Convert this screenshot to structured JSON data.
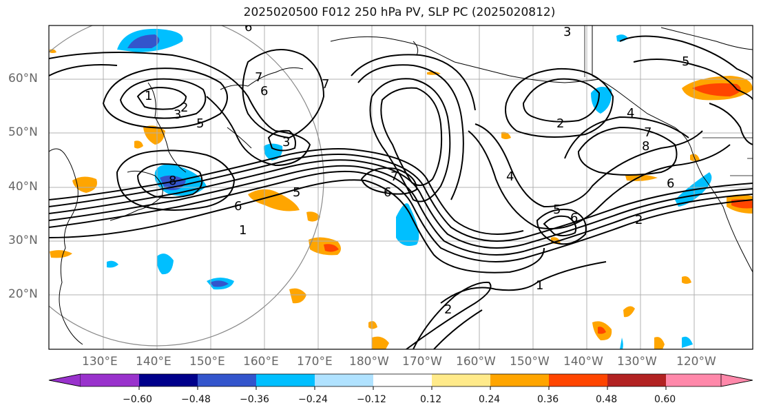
{
  "title": "2025020500 F012 250 hPa PV, SLP PC (2025020812)",
  "lat_labels": [
    "60°N",
    "50°N",
    "40°N",
    "30°N",
    "20°N"
  ],
  "lon_labels": [
    "130°E",
    "140°E",
    "150°E",
    "160°E",
    "170°E",
    "180°W",
    "170°W",
    "160°W",
    "150°W",
    "140°W",
    "130°W",
    "120°W"
  ],
  "colorbar": {
    "ticks": [
      "−0.60",
      "−0.48",
      "−0.36",
      "−0.24",
      "−0.12",
      "0.12",
      "0.24",
      "0.36",
      "0.48",
      "0.60"
    ],
    "colors": [
      "#9932cc",
      "#00008b",
      "#3355cc",
      "#00bfff",
      "#b0e2ff",
      "#ffffff",
      "#ffea8a",
      "#ffa500",
      "#ff4500",
      "#b22222",
      "#ff88aa",
      "#ff88aa"
    ]
  },
  "contour_labels": [
    "1",
    "1",
    "1",
    "2",
    "2",
    "2",
    "3",
    "3",
    "3",
    "4",
    "4",
    "5",
    "5",
    "5",
    "5",
    "6",
    "6",
    "6",
    "6",
    "6",
    "6",
    "7",
    "7",
    "7",
    "7",
    "8",
    "8",
    "2"
  ]
}
